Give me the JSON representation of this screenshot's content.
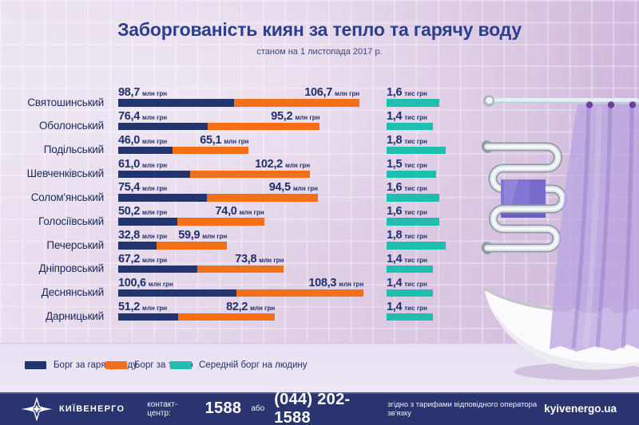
{
  "title": "Заборгованість киян за тепло та гарячу воду",
  "subtitle": "станом на 1 листопада 2017 р.",
  "chart_data": {
    "type": "bar",
    "orientation": "horizontal",
    "stacked": true,
    "title": "Заборгованість киян за тепло та гарячу воду",
    "subtitle": "станом на 1 листопада 2017 р.",
    "categories": [
      "Святошинський",
      "Оболонський",
      "Подільський",
      "Шевченківський",
      "Солом'янський",
      "Голосіївський",
      "Печерський",
      "Дніпровський",
      "Деснянський",
      "Дарницький"
    ],
    "series": [
      {
        "name": "Борг за гарячу воду",
        "unit": "млн грн",
        "color": "#22356e",
        "values": [
          98.7,
          76.4,
          46.0,
          61.0,
          75.4,
          50.2,
          32.8,
          67.2,
          100.6,
          51.2
        ],
        "labels": [
          "98,7",
          "76,4",
          "46,0",
          "61,0",
          "75,4",
          "50,2",
          "32,8",
          "67,2",
          "100,6",
          "51,2"
        ]
      },
      {
        "name": "Борг за тепло",
        "unit": "млн грн",
        "color": "#f37018",
        "values": [
          106.7,
          95.2,
          65.1,
          102.2,
          94.5,
          74.0,
          59.9,
          73.8,
          108.3,
          82.2
        ],
        "labels": [
          "106,7",
          "95,2",
          "65,1",
          "102,2",
          "94,5",
          "74,0",
          "59,9",
          "73,8",
          "108,3",
          "82,2"
        ]
      },
      {
        "name": "Середній борг на людину",
        "unit": "тис грн",
        "color": "#1ebfae",
        "values": [
          1.6,
          1.4,
          1.8,
          1.5,
          1.6,
          1.6,
          1.8,
          1.4,
          1.4,
          1.4
        ],
        "labels": [
          "1,6",
          "1,4",
          "1,8",
          "1,5",
          "1,6",
          "1,6",
          "1,8",
          "1,4",
          "1,4",
          "1,4"
        ]
      }
    ],
    "legend_position": "bottom"
  },
  "legend": {
    "items": [
      {
        "label": "Борг за гарячу воду",
        "color": "#22356e"
      },
      {
        "label": "Борг за тепло",
        "color": "#f37018"
      },
      {
        "label": "Середній борг на людину",
        "color": "#1ebfae"
      }
    ]
  },
  "footer": {
    "brand": "КИЇВЕНЕРГО",
    "contact_label": "контакт-центр:",
    "phone_short": "1588",
    "or_label": "або",
    "phone_full": "(044) 202-1588",
    "tariff_note": "згідно з тарифами відповідного оператора зв'язку",
    "website": "kyivenergo.ua"
  },
  "colors": {
    "hot_water_bar": "#22356e",
    "heat_bar": "#f37018",
    "average_bar": "#1ebfae",
    "title_text": "#2c3e8c",
    "wall": "#e2d4e9",
    "floor": "#ebe5f4",
    "footer_bg": "#2a356f",
    "towel": "#8276d5",
    "curtain": "#baa7e0"
  },
  "icons": {
    "logo": "kyivenergo-star-icon",
    "scene": [
      "shower-rod",
      "shower-curtain",
      "curtain-rings",
      "towel-radiator",
      "towel",
      "bathtub",
      "bathtub-shadow",
      "bath-foam"
    ]
  }
}
